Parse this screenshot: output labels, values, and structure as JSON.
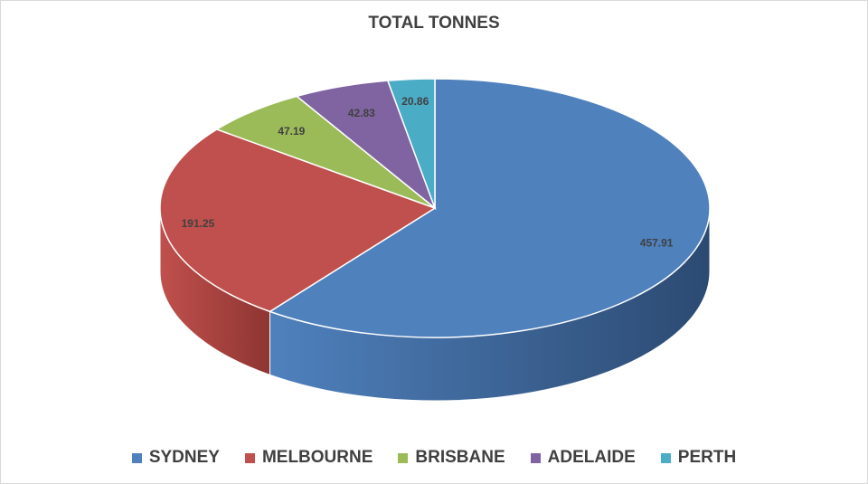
{
  "chart_data": {
    "type": "pie",
    "title": "TOTAL TONNES",
    "categories": [
      "SYDNEY",
      "MELBOURNE",
      "BRISBANE",
      "ADELAIDE",
      "PERTH"
    ],
    "values": [
      457.91,
      191.25,
      47.19,
      42.83,
      20.86
    ],
    "data_labels": [
      "457.91",
      "191.25",
      "47.19",
      "42.83",
      "20.86"
    ],
    "colors": [
      "#4f81bd",
      "#c0504d",
      "#9bbb59",
      "#8064a2",
      "#4bacc6"
    ],
    "side_colors": [
      "#2c4a72",
      "#8e3532",
      "#6d8a3c",
      "#5a4575",
      "#2f7f95"
    ],
    "legend_position": "bottom",
    "style": "3d"
  }
}
